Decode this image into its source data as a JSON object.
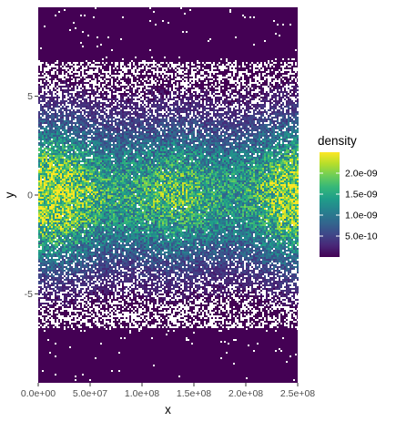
{
  "chart_data": {
    "type": "heatmap",
    "title": "",
    "xlabel": "x",
    "ylabel": "y",
    "xlim": [
      0,
      250000000
    ],
    "ylim": [
      -9.5,
      9.5
    ],
    "x_ticks": [
      {
        "value": 0,
        "label": "0.0e+00"
      },
      {
        "value": 50000000,
        "label": "5.0e+07"
      },
      {
        "value": 100000000,
        "label": "1.0e+08"
      },
      {
        "value": 150000000,
        "label": "1.5e+08"
      },
      {
        "value": 200000000,
        "label": "2.0e+08"
      },
      {
        "value": 250000000,
        "label": "2.5e+08"
      }
    ],
    "y_ticks": [
      {
        "value": -5,
        "label": "-5"
      },
      {
        "value": 0,
        "label": "0"
      },
      {
        "value": 5,
        "label": "5"
      }
    ],
    "fill": {
      "name": "density",
      "range": [
        0,
        2.5e-09
      ],
      "palette": [
        "#440154",
        "#482878",
        "#3e4989",
        "#31688e",
        "#26828e",
        "#1f9e89",
        "#35b779",
        "#6ece58",
        "#b5de2b",
        "#fde725"
      ],
      "empty_bin_color": "#ffffff",
      "breaks": [
        {
          "value": 5e-10,
          "label": "5.0e-10"
        },
        {
          "value": 1e-09,
          "label": "1.0e-09"
        },
        {
          "value": 1.5e-09,
          "label": "1.5e-09"
        },
        {
          "value": 2e-09,
          "label": "2.0e-09"
        }
      ]
    },
    "density_profile": {
      "description_of_pattern": "band centered on y=0",
      "peak_density": 2.3e-09,
      "y_spread_sd": 2.4
    },
    "grid": false,
    "legend_position": "right"
  }
}
